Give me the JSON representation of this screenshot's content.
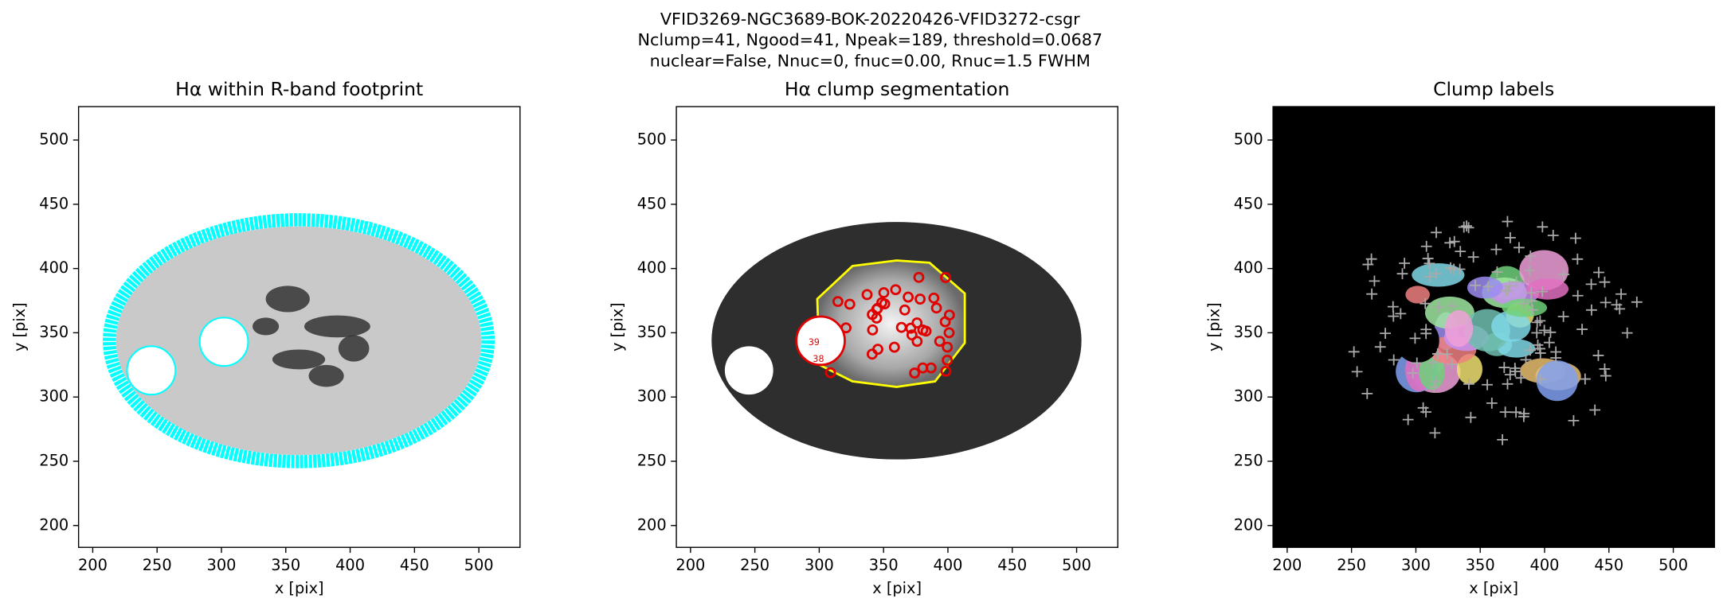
{
  "suptitle": [
    "VFID3269-NGC3689-BOK-20220426-VFID3272-csgr",
    "Nclump=41, Ngood=41, Npeak=189, threshold=0.0687",
    "nuclear=False, Nnuc=0, fnuc=0.00, Rnuc=1.5 FWHM"
  ],
  "chart_data": [
    {
      "type": "image",
      "style": "footprint",
      "title": "Hα within R-band footprint",
      "xlabel": "x [pix]",
      "ylabel": "y [pix]",
      "xlim": [
        189,
        532
      ],
      "ylim": [
        183,
        526
      ],
      "xticks": [
        200,
        250,
        300,
        350,
        400,
        450,
        500
      ],
      "yticks": [
        200,
        250,
        300,
        350,
        400,
        450,
        500
      ]
    },
    {
      "type": "image",
      "style": "segmentation",
      "title": "Hα clump segmentation",
      "xlabel": "x [pix]",
      "ylabel": "y [pix]",
      "xlim": [
        189,
        532
      ],
      "ylim": [
        183,
        526
      ],
      "xticks": [
        200,
        250,
        300,
        350,
        400,
        450,
        500
      ],
      "yticks": [
        200,
        250,
        300,
        350,
        400,
        450,
        500
      ],
      "annotations": [
        "39",
        "38"
      ]
    },
    {
      "type": "image",
      "style": "labels",
      "title": "Clump labels",
      "xlabel": "x [pix]",
      "ylabel": "y [pix]",
      "xlim": [
        189,
        532
      ],
      "ylim": [
        183,
        526
      ],
      "xticks": [
        200,
        250,
        300,
        350,
        400,
        450,
        500
      ],
      "yticks": [
        200,
        250,
        300,
        350,
        400,
        450,
        500
      ]
    }
  ]
}
